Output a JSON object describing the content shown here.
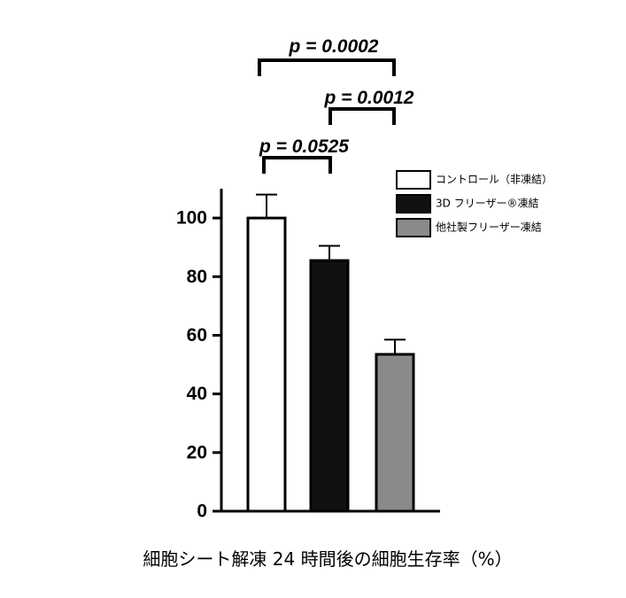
{
  "chart_data": {
    "type": "bar",
    "x_label": "細胞シート解凍 24 時間後の細胞生存率（%）",
    "ylim": [
      0,
      110
    ],
    "yticks": [
      0,
      20,
      40,
      60,
      80,
      100
    ],
    "series": [
      {
        "name": "コントロール（非凍結）",
        "color": "#ffffff",
        "values": [
          100
        ],
        "errors": [
          8
        ]
      },
      {
        "name": "3D フリーザー®凍結",
        "color": "#111111",
        "values": [
          85.5
        ],
        "errors": [
          5
        ]
      },
      {
        "name": "他社製フリーザー凍結",
        "color": "#8a8a8a",
        "values": [
          53.5
        ],
        "errors": [
          5
        ]
      }
    ],
    "annotations": [
      "p = 0.0525",
      "p = 0.0012",
      "p = 0.0002"
    ]
  }
}
